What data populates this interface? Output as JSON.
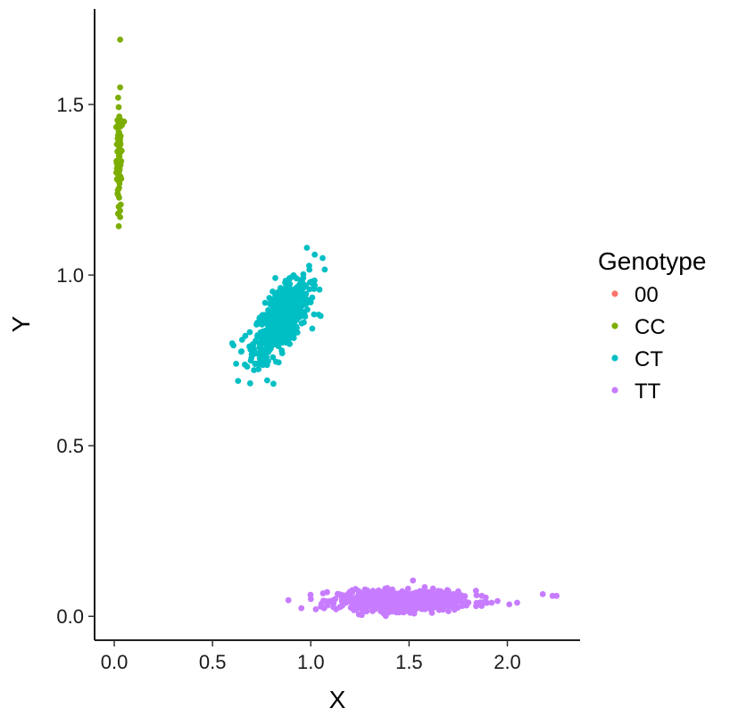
{
  "chart_data": {
    "type": "scatter",
    "xlabel": "X",
    "ylabel": "Y",
    "xlim": [
      -0.1,
      2.37
    ],
    "ylim": [
      -0.07,
      1.78
    ],
    "x_ticks": [
      "0.0",
      "0.5",
      "1.0",
      "1.5",
      "2.0"
    ],
    "y_ticks": [
      "0.0",
      "0.5",
      "1.0",
      "1.5"
    ],
    "grid": false,
    "legend": {
      "title": "Genotype",
      "placement": "right",
      "entries": [
        "00",
        "CC",
        "CT",
        "TT"
      ]
    },
    "series": [
      {
        "name": "00",
        "color": "#F8766D",
        "points": []
      },
      {
        "name": "CC",
        "color": "#7CAE00",
        "cluster": {
          "x_mean": 0.025,
          "x_sd": 0.007,
          "y_mean": 1.34,
          "y_sd": 0.075,
          "n": 70
        },
        "points": [
          [
            0.03,
            1.69
          ],
          [
            0.03,
            1.55
          ],
          [
            0.02,
            1.52
          ],
          [
            0.04,
            1.44
          ],
          [
            0.05,
            1.45
          ],
          [
            0.02,
            1.18
          ],
          [
            0.03,
            1.17
          ],
          [
            0.02,
            1.18
          ]
        ]
      },
      {
        "name": "CT",
        "color": "#00BFC4",
        "cluster": {
          "x_mean": 0.85,
          "x_sd": 0.07,
          "y_mean": 0.87,
          "y_sd": 0.055,
          "corr": 0.65,
          "n": 700
        },
        "points": [
          [
            0.63,
            0.69
          ],
          [
            0.62,
            0.74
          ],
          [
            0.6,
            0.8
          ],
          [
            0.98,
            1.08
          ],
          [
            1.02,
            1.06
          ],
          [
            1.06,
            1.05
          ],
          [
            1.05,
            0.88
          ],
          [
            1.02,
            0.97
          ]
        ]
      },
      {
        "name": "TT",
        "color": "#C77CFF",
        "cluster": {
          "x_mean": 1.45,
          "x_sd": 0.15,
          "y_mean": 0.045,
          "y_sd": 0.014,
          "n": 900
        },
        "points": [
          [
            2.18,
            0.065
          ],
          [
            2.23,
            0.06
          ],
          [
            2.25,
            0.06
          ],
          [
            2.05,
            0.04
          ],
          [
            2.01,
            0.035
          ],
          [
            1.95,
            0.045
          ],
          [
            1.92,
            0.04
          ],
          [
            1.87,
            0.06
          ],
          [
            1.84,
            0.075
          ],
          [
            1.52,
            0.105
          ],
          [
            1.89,
            0.055
          ]
        ]
      }
    ]
  }
}
